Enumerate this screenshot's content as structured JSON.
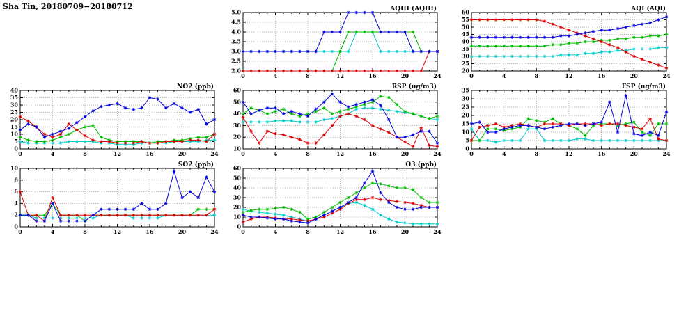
{
  "title": "Sha Tin, 20180709−20180712",
  "chart_common": {
    "hours": [
      0,
      1,
      2,
      3,
      4,
      5,
      6,
      7,
      8,
      9,
      10,
      11,
      12,
      13,
      14,
      15,
      16,
      17,
      18,
      19,
      20,
      21,
      22,
      23,
      24
    ],
    "xticks": [
      0,
      4,
      8,
      12,
      16,
      20,
      24
    ],
    "grid": true,
    "legend": "none",
    "series_colors": {
      "blue": "#0000dd",
      "red": "#dd0000",
      "green": "#00bb00",
      "cyan": "#00cccc"
    }
  },
  "chart_data": [
    {
      "id": "aqhi",
      "type": "line",
      "title": "AQHI (AQHI)",
      "xlabel": "",
      "ylabel": "AQHI",
      "xlim": [
        0,
        24
      ],
      "ylim": [
        2.0,
        5.0
      ],
      "xticks": [
        0,
        4,
        8,
        12,
        16,
        20,
        24
      ],
      "yticks": [
        2.0,
        2.5,
        3.0,
        3.5,
        4.0,
        4.5,
        5.0
      ],
      "ytick_labels": [
        "2.0",
        "2.5",
        "3.0",
        "3.5",
        "4.0",
        "4.5",
        "5.0"
      ],
      "series": [
        {
          "name": "cyan",
          "color": "#00cccc",
          "values": [
            3,
            3,
            3,
            3,
            3,
            3,
            3,
            3,
            3,
            3,
            3,
            3,
            3,
            3,
            4,
            4,
            4,
            3,
            3,
            3,
            3,
            3,
            3,
            3,
            3
          ]
        },
        {
          "name": "green",
          "color": "#00bb00",
          "values": [
            2,
            2,
            2,
            2,
            2,
            2,
            2,
            2,
            2,
            2,
            2,
            2,
            3,
            4,
            4,
            4,
            4,
            4,
            4,
            4,
            4,
            4,
            3,
            3,
            3
          ]
        },
        {
          "name": "red",
          "color": "#dd0000",
          "values": [
            2,
            2,
            2,
            2,
            2,
            2,
            2,
            2,
            2,
            2,
            2,
            2,
            2,
            2,
            2,
            2,
            2,
            2,
            2,
            2,
            2,
            2,
            2,
            3,
            3
          ]
        },
        {
          "name": "blue",
          "color": "#0000dd",
          "values": [
            3,
            3,
            3,
            3,
            3,
            3,
            3,
            3,
            3,
            3,
            4,
            4,
            4,
            5,
            5,
            5,
            5,
            4,
            4,
            4,
            4,
            3,
            3,
            3,
            3
          ]
        }
      ]
    },
    {
      "id": "aqi",
      "type": "line",
      "title": "AQI (AQI)",
      "xlabel": "",
      "ylabel": "AQI",
      "xlim": [
        0,
        24
      ],
      "ylim": [
        20,
        60
      ],
      "xticks": [
        0,
        4,
        8,
        12,
        16,
        20,
        24
      ],
      "yticks": [
        20,
        25,
        30,
        35,
        40,
        45,
        50,
        55,
        60
      ],
      "ytick_labels": [
        "20",
        "25",
        "30",
        "35",
        "40",
        "45",
        "50",
        "55",
        "60"
      ],
      "series": [
        {
          "name": "cyan",
          "color": "#00cccc",
          "values": [
            30,
            30,
            30,
            30,
            30,
            30,
            30,
            30,
            30,
            30,
            30,
            31,
            31,
            31,
            32,
            32,
            33,
            33,
            34,
            34,
            35,
            35,
            35,
            36,
            36
          ]
        },
        {
          "name": "green",
          "color": "#00bb00",
          "values": [
            37,
            37,
            37,
            37,
            37,
            37,
            37,
            37,
            37,
            37,
            38,
            38,
            39,
            39,
            40,
            40,
            41,
            41,
            42,
            42,
            43,
            43,
            44,
            44,
            45
          ]
        },
        {
          "name": "red",
          "color": "#dd0000",
          "values": [
            55,
            55,
            55,
            55,
            55,
            55,
            55,
            55,
            55,
            54,
            52,
            50,
            48,
            46,
            44,
            42,
            40,
            38,
            36,
            33,
            30,
            28,
            26,
            24,
            22
          ]
        },
        {
          "name": "blue",
          "color": "#0000dd",
          "values": [
            43,
            43,
            43,
            43,
            43,
            43,
            43,
            43,
            43,
            43,
            43,
            44,
            44,
            45,
            46,
            47,
            48,
            48,
            49,
            50,
            51,
            52,
            53,
            55,
            57
          ]
        }
      ]
    },
    {
      "id": "no2",
      "type": "line",
      "title": "NO2 (ppb)",
      "xlabel": "",
      "ylabel": "NO2 ppb",
      "xlim": [
        0,
        24
      ],
      "ylim": [
        0,
        40
      ],
      "xticks": [
        0,
        4,
        8,
        12,
        16,
        20,
        24
      ],
      "yticks": [
        0,
        5,
        10,
        15,
        20,
        25,
        30,
        35,
        40
      ],
      "ytick_labels": [
        "0",
        "5",
        "10",
        "15",
        "20",
        "25",
        "30",
        "35",
        "40"
      ],
      "series": [
        {
          "name": "cyan",
          "color": "#00cccc",
          "values": [
            5,
            4,
            4,
            4,
            4,
            4,
            5,
            5,
            5,
            5,
            4,
            4,
            3,
            3,
            3,
            4,
            4,
            4,
            4,
            5,
            5,
            5,
            5,
            6,
            6
          ]
        },
        {
          "name": "green",
          "color": "#00bb00",
          "values": [
            8,
            6,
            5,
            5,
            6,
            8,
            10,
            13,
            15,
            16,
            8,
            6,
            5,
            5,
            5,
            5,
            4,
            5,
            5,
            6,
            6,
            7,
            8,
            8,
            10
          ]
        },
        {
          "name": "red",
          "color": "#dd0000",
          "values": [
            22,
            19,
            15,
            10,
            8,
            10,
            17,
            13,
            9,
            6,
            5,
            5,
            4,
            4,
            4,
            5,
            4,
            4,
            5,
            5,
            5,
            6,
            6,
            5,
            10
          ]
        },
        {
          "name": "blue",
          "color": "#0000dd",
          "values": [
            13,
            17,
            15,
            8,
            10,
            12,
            14,
            18,
            22,
            26,
            29,
            30,
            31,
            28,
            27,
            28,
            35,
            34,
            28,
            31,
            28,
            25,
            27,
            17,
            20
          ]
        }
      ]
    },
    {
      "id": "rsp",
      "type": "line",
      "title": "RSP (ug/m3)",
      "xlabel": "",
      "ylabel": "RSP ug/m3",
      "xlim": [
        0,
        24
      ],
      "ylim": [
        10,
        60
      ],
      "xticks": [
        0,
        4,
        8,
        12,
        16,
        20,
        24
      ],
      "yticks": [
        10,
        20,
        30,
        40,
        50,
        60
      ],
      "ytick_labels": [
        "10",
        "20",
        "30",
        "40",
        "50",
        "60"
      ],
      "series": [
        {
          "name": "cyan",
          "color": "#00cccc",
          "values": [
            33,
            33,
            33,
            33,
            34,
            34,
            34,
            33,
            33,
            33,
            35,
            36,
            38,
            40,
            44,
            45,
            45,
            44,
            43,
            42,
            41,
            40,
            38,
            36,
            35
          ]
        },
        {
          "name": "green",
          "color": "#00bb00",
          "values": [
            40,
            45,
            43,
            40,
            42,
            44,
            40,
            38,
            40,
            42,
            45,
            40,
            42,
            44,
            46,
            48,
            50,
            55,
            54,
            48,
            42,
            40,
            38,
            36,
            38
          ]
        },
        {
          "name": "red",
          "color": "#dd0000",
          "values": [
            37,
            25,
            15,
            25,
            23,
            22,
            20,
            18,
            15,
            15,
            22,
            30,
            38,
            40,
            38,
            35,
            30,
            27,
            24,
            20,
            16,
            12,
            28,
            13,
            12
          ]
        },
        {
          "name": "blue",
          "color": "#0000dd",
          "values": [
            50,
            40,
            43,
            45,
            45,
            40,
            42,
            40,
            38,
            44,
            50,
            57,
            50,
            46,
            48,
            50,
            52,
            47,
            35,
            20,
            20,
            22,
            25,
            25,
            15
          ]
        }
      ]
    },
    {
      "id": "fsp",
      "type": "line",
      "title": "FSP (ug/m3)",
      "xlabel": "",
      "ylabel": "FSP ug/m3",
      "xlim": [
        0,
        24
      ],
      "ylim": [
        0,
        35
      ],
      "xticks": [
        0,
        4,
        8,
        12,
        16,
        20,
        24
      ],
      "yticks": [
        0,
        5,
        10,
        15,
        20,
        25,
        30,
        35
      ],
      "ytick_labels": [
        "0",
        "5",
        "10",
        "15",
        "20",
        "25",
        "30",
        "35"
      ],
      "series": [
        {
          "name": "cyan",
          "color": "#00cccc",
          "values": [
            12,
            5,
            5,
            4,
            5,
            5,
            5,
            12,
            12,
            5,
            5,
            5,
            5,
            6,
            6,
            5,
            5,
            5,
            5,
            5,
            5,
            5,
            5,
            5,
            5
          ]
        },
        {
          "name": "green",
          "color": "#00bb00",
          "values": [
            5,
            5,
            12,
            12,
            11,
            12,
            13,
            18,
            17,
            16,
            18,
            15,
            14,
            12,
            8,
            14,
            15,
            15,
            14,
            15,
            16,
            10,
            8,
            15,
            15
          ]
        },
        {
          "name": "red",
          "color": "#dd0000",
          "values": [
            5,
            13,
            14,
            15,
            13,
            14,
            15,
            14,
            13,
            15,
            15,
            15,
            14,
            15,
            15,
            15,
            14,
            15,
            15,
            14,
            13,
            12,
            18,
            6,
            5
          ]
        },
        {
          "name": "blue",
          "color": "#0000dd",
          "values": [
            15,
            16,
            10,
            10,
            12,
            13,
            14,
            14,
            13,
            12,
            13,
            14,
            15,
            15,
            14,
            15,
            16,
            28,
            10,
            32,
            9,
            8,
            10,
            8,
            22
          ]
        }
      ]
    },
    {
      "id": "so2",
      "type": "line",
      "title": "SO2 (ppb)",
      "xlabel": "",
      "ylabel": "SO2 ppb",
      "xlim": [
        0,
        24
      ],
      "ylim": [
        0,
        10
      ],
      "xticks": [
        0,
        4,
        8,
        12,
        16,
        20,
        24
      ],
      "yticks": [
        0,
        2,
        4,
        6,
        8,
        10
      ],
      "ytick_labels": [
        "0",
        "2",
        "4",
        "6",
        "8",
        "10"
      ],
      "series": [
        {
          "name": "cyan",
          "color": "#00cccc",
          "values": [
            2,
            2,
            1.5,
            1.5,
            1.5,
            1.5,
            1.5,
            1.5,
            1.5,
            1.5,
            2,
            2,
            2,
            2,
            1.5,
            1.5,
            1.5,
            1.5,
            2,
            2,
            2,
            2,
            2,
            2,
            2
          ]
        },
        {
          "name": "green",
          "color": "#00bb00",
          "values": [
            2,
            2,
            2,
            2,
            4,
            2,
            2,
            2,
            1,
            2,
            2,
            2,
            2,
            2,
            2,
            2,
            2,
            2,
            2,
            2,
            2,
            2,
            3,
            3,
            3
          ]
        },
        {
          "name": "red",
          "color": "#dd0000",
          "values": [
            6,
            2,
            2,
            1,
            5,
            2,
            2,
            2,
            2,
            2,
            2,
            2,
            2,
            2,
            2,
            2,
            2,
            2,
            2,
            2,
            2,
            2,
            2,
            2,
            3
          ]
        },
        {
          "name": "blue",
          "color": "#0000dd",
          "values": [
            2,
            2,
            1,
            1,
            4,
            1,
            1,
            1,
            1,
            2,
            3,
            3,
            3,
            3,
            3,
            4,
            3,
            3,
            4,
            9.5,
            5,
            6,
            5,
            8.5,
            6
          ]
        }
      ]
    },
    {
      "id": "o3",
      "type": "line",
      "title": "O3 (ppb)",
      "xlabel": "",
      "ylabel": "O3 ppb",
      "xlim": [
        0,
        24
      ],
      "ylim": [
        0,
        60
      ],
      "xticks": [
        0,
        4,
        8,
        12,
        16,
        20,
        24
      ],
      "yticks": [
        0,
        10,
        20,
        30,
        40,
        50,
        60
      ],
      "ytick_labels": [
        "0",
        "10",
        "20",
        "30",
        "40",
        "50",
        "60"
      ],
      "series": [
        {
          "name": "cyan",
          "color": "#00cccc",
          "values": [
            18,
            16,
            15,
            14,
            13,
            12,
            10,
            8,
            6,
            8,
            12,
            16,
            20,
            24,
            25,
            22,
            18,
            12,
            8,
            5,
            4,
            3,
            3,
            3,
            3
          ]
        },
        {
          "name": "green",
          "color": "#00bb00",
          "values": [
            15,
            17,
            18,
            18,
            19,
            20,
            18,
            15,
            8,
            10,
            15,
            20,
            25,
            30,
            35,
            40,
            45,
            44,
            42,
            40,
            40,
            38,
            30,
            25,
            25
          ]
        },
        {
          "name": "red",
          "color": "#dd0000",
          "values": [
            5,
            8,
            10,
            10,
            9,
            8,
            8,
            7,
            6,
            8,
            10,
            14,
            18,
            24,
            28,
            28,
            30,
            28,
            27,
            26,
            25,
            24,
            22,
            20,
            20
          ]
        },
        {
          "name": "blue",
          "color": "#0000dd",
          "values": [
            12,
            10,
            10,
            9,
            8,
            8,
            6,
            5,
            4,
            8,
            12,
            16,
            20,
            25,
            30,
            45,
            57,
            35,
            25,
            20,
            18,
            18,
            20,
            20,
            20
          ]
        }
      ]
    }
  ]
}
